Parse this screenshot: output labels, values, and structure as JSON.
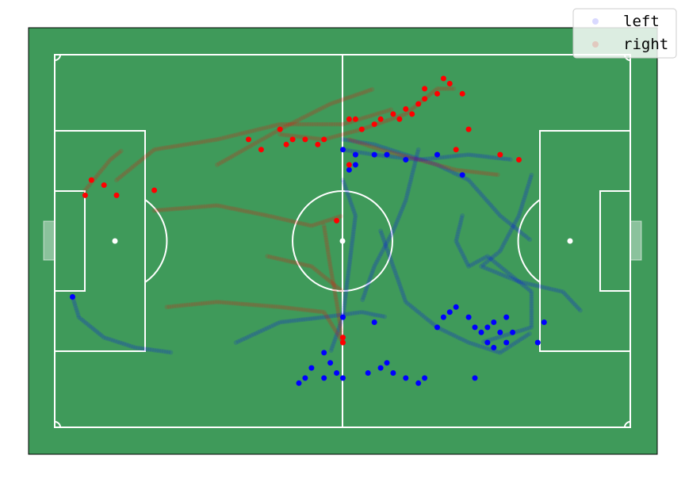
{
  "chart_data": {
    "type": "scatter",
    "title": "",
    "xlabel": "",
    "ylabel": "",
    "xlim": [
      -0.5,
      0.5
    ],
    "ylim": [
      -0.42,
      0.42
    ],
    "grid": false,
    "legend_position": "top-right",
    "background_color": "#3f9a5a",
    "line_color": "#ffffff",
    "series": [
      {
        "name": "left",
        "color": "#0000ff",
        "tracks": [
          [
            [
              -0.43,
              -0.11
            ],
            [
              -0.42,
              -0.15
            ],
            [
              -0.38,
              -0.19
            ],
            [
              -0.33,
              -0.21
            ],
            [
              -0.27,
              -0.22
            ]
          ],
          [
            [
              0.0,
              0.18
            ],
            [
              0.05,
              0.17
            ],
            [
              0.12,
              0.16
            ],
            [
              0.2,
              0.17
            ],
            [
              0.27,
              0.16
            ]
          ],
          [
            [
              -0.0,
              0.2
            ],
            [
              0.05,
              0.19
            ],
            [
              0.1,
              0.17
            ],
            [
              0.15,
              0.15
            ],
            [
              0.2,
              0.12
            ],
            [
              0.25,
              0.05
            ],
            [
              0.3,
              0.0
            ]
          ],
          [
            [
              0.3,
              0.13
            ],
            [
              0.28,
              0.05
            ],
            [
              0.25,
              -0.02
            ],
            [
              0.22,
              -0.05
            ],
            [
              0.28,
              -0.08
            ],
            [
              0.35,
              -0.1
            ],
            [
              0.38,
              -0.14
            ]
          ],
          [
            [
              0.0,
              0.12
            ],
            [
              0.02,
              0.05
            ],
            [
              0.01,
              -0.05
            ],
            [
              0.0,
              -0.15
            ],
            [
              -0.02,
              -0.22
            ]
          ],
          [
            [
              0.19,
              0.05
            ],
            [
              0.18,
              0.0
            ],
            [
              0.2,
              -0.05
            ],
            [
              0.23,
              -0.03
            ],
            [
              0.3,
              -0.1
            ],
            [
              0.3,
              -0.17
            ],
            [
              0.22,
              -0.2
            ]
          ],
          [
            [
              0.12,
              0.18
            ],
            [
              0.1,
              0.08
            ],
            [
              0.08,
              0.02
            ],
            [
              0.05,
              -0.05
            ],
            [
              0.03,
              -0.12
            ]
          ],
          [
            [
              0.06,
              0.02
            ],
            [
              0.08,
              -0.05
            ],
            [
              0.1,
              -0.12
            ],
            [
              0.15,
              -0.17
            ],
            [
              0.2,
              -0.2
            ],
            [
              0.25,
              -0.22
            ],
            [
              0.3,
              -0.18
            ]
          ],
          [
            [
              -0.17,
              -0.2
            ],
            [
              -0.1,
              -0.16
            ],
            [
              -0.03,
              -0.15
            ],
            [
              0.03,
              -0.14
            ],
            [
              0.07,
              -0.15
            ]
          ]
        ],
        "points": [
          [
            -0.43,
            -0.11
          ],
          [
            0.0,
            0.18
          ],
          [
            0.02,
            0.17
          ],
          [
            0.05,
            0.17
          ],
          [
            0.07,
            0.17
          ],
          [
            0.1,
            0.16
          ],
          [
            0.02,
            0.15
          ],
          [
            0.01,
            0.14
          ],
          [
            0.15,
            0.17
          ],
          [
            0.19,
            0.13
          ],
          [
            0.0,
            -0.15
          ],
          [
            0.05,
            -0.16
          ],
          [
            0.15,
            -0.17
          ],
          [
            0.16,
            -0.15
          ],
          [
            0.17,
            -0.14
          ],
          [
            0.18,
            -0.13
          ],
          [
            0.2,
            -0.15
          ],
          [
            0.21,
            -0.17
          ],
          [
            0.22,
            -0.18
          ],
          [
            0.23,
            -0.17
          ],
          [
            0.24,
            -0.16
          ],
          [
            0.25,
            -0.18
          ],
          [
            0.26,
            -0.15
          ],
          [
            0.27,
            -0.18
          ],
          [
            0.23,
            -0.2
          ],
          [
            0.24,
            -0.21
          ],
          [
            0.26,
            -0.2
          ],
          [
            0.31,
            -0.2
          ],
          [
            0.32,
            -0.16
          ],
          [
            -0.03,
            -0.22
          ],
          [
            -0.02,
            -0.24
          ],
          [
            -0.05,
            -0.25
          ],
          [
            -0.06,
            -0.27
          ],
          [
            -0.07,
            -0.28
          ],
          [
            0.0,
            -0.27
          ],
          [
            0.04,
            -0.26
          ],
          [
            0.06,
            -0.25
          ],
          [
            0.08,
            -0.26
          ],
          [
            0.1,
            -0.27
          ],
          [
            0.12,
            -0.28
          ],
          [
            0.13,
            -0.27
          ],
          [
            0.07,
            -0.24
          ],
          [
            -0.01,
            -0.26
          ],
          [
            -0.03,
            -0.27
          ],
          [
            0.21,
            -0.27
          ]
        ]
      },
      {
        "name": "right",
        "color": "#ff0000",
        "tracks": [
          [
            [
              -0.41,
              0.1
            ],
            [
              -0.39,
              0.13
            ],
            [
              -0.37,
              0.16
            ],
            [
              -0.35,
              0.18
            ]
          ],
          [
            [
              -0.36,
              0.12
            ],
            [
              -0.3,
              0.18
            ],
            [
              -0.2,
              0.2
            ],
            [
              -0.1,
              0.23
            ],
            [
              0.0,
              0.23
            ],
            [
              0.08,
              0.26
            ]
          ],
          [
            [
              -0.3,
              0.06
            ],
            [
              -0.2,
              0.07
            ],
            [
              -0.12,
              0.05
            ],
            [
              -0.05,
              0.03
            ],
            [
              0.0,
              0.05
            ]
          ],
          [
            [
              -0.12,
              -0.03
            ],
            [
              -0.05,
              -0.05
            ],
            [
              -0.02,
              -0.08
            ],
            [
              0.0,
              -0.1
            ]
          ],
          [
            [
              -0.28,
              -0.13
            ],
            [
              -0.2,
              -0.12
            ],
            [
              -0.1,
              -0.13
            ],
            [
              -0.03,
              -0.14
            ],
            [
              0.0,
              -0.2
            ]
          ],
          [
            [
              -0.1,
              0.21
            ],
            [
              -0.03,
              0.2
            ],
            [
              0.03,
              0.22
            ],
            [
              0.1,
              0.25
            ],
            [
              0.15,
              0.3
            ],
            [
              0.18,
              0.3
            ]
          ],
          [
            [
              0.01,
              0.2
            ],
            [
              0.06,
              0.18
            ],
            [
              0.12,
              0.16
            ],
            [
              0.18,
              0.14
            ],
            [
              0.25,
              0.13
            ]
          ],
          [
            [
              -0.03,
              0.03
            ],
            [
              -0.02,
              -0.05
            ],
            [
              -0.01,
              -0.12
            ],
            [
              0.0,
              -0.2
            ]
          ],
          [
            [
              -0.2,
              0.15
            ],
            [
              -0.1,
              0.22
            ],
            [
              -0.02,
              0.27
            ],
            [
              0.05,
              0.3
            ]
          ]
        ],
        "points": [
          [
            -0.41,
            0.09
          ],
          [
            -0.4,
            0.12
          ],
          [
            -0.38,
            0.11
          ],
          [
            -0.36,
            0.09
          ],
          [
            -0.3,
            0.1
          ],
          [
            -0.15,
            0.2
          ],
          [
            -0.13,
            0.18
          ],
          [
            -0.1,
            0.22
          ],
          [
            -0.09,
            0.19
          ],
          [
            -0.08,
            0.2
          ],
          [
            -0.06,
            0.2
          ],
          [
            -0.04,
            0.19
          ],
          [
            -0.03,
            0.2
          ],
          [
            0.01,
            0.24
          ],
          [
            0.02,
            0.24
          ],
          [
            0.03,
            0.22
          ],
          [
            0.05,
            0.23
          ],
          [
            0.06,
            0.24
          ],
          [
            0.08,
            0.25
          ],
          [
            0.09,
            0.24
          ],
          [
            0.1,
            0.26
          ],
          [
            0.11,
            0.25
          ],
          [
            0.12,
            0.27
          ],
          [
            0.13,
            0.28
          ],
          [
            0.15,
            0.29
          ],
          [
            0.16,
            0.32
          ],
          [
            0.17,
            0.31
          ],
          [
            0.13,
            0.3
          ],
          [
            0.19,
            0.29
          ],
          [
            0.2,
            0.22
          ],
          [
            0.18,
            0.18
          ],
          [
            0.25,
            0.17
          ],
          [
            0.28,
            0.16
          ],
          [
            0.01,
            0.15
          ],
          [
            -0.01,
            0.04
          ],
          [
            0.0,
            -0.19
          ],
          [
            0.0,
            -0.2
          ]
        ]
      }
    ]
  }
}
